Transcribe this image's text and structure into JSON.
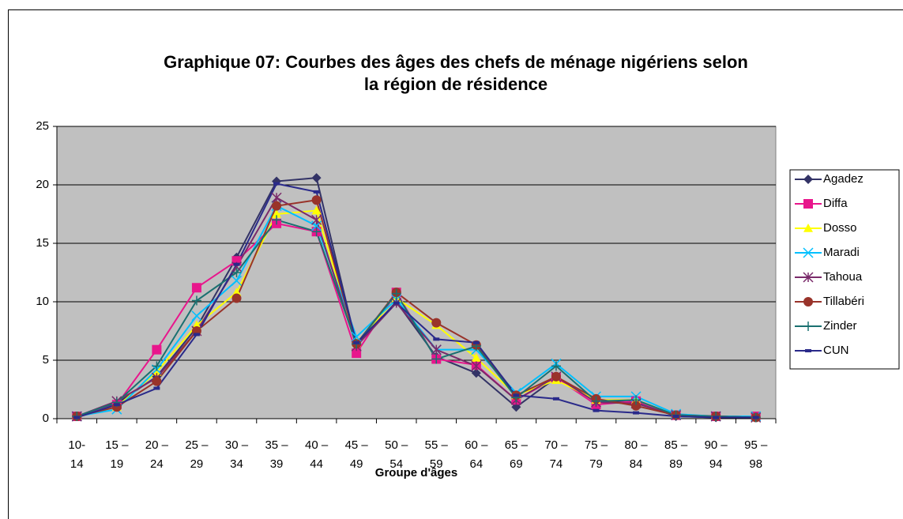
{
  "chart_data": {
    "type": "line",
    "title": "Graphique 07: Courbes des âges des chefs de ménage nigériens selon\nla région de résidence",
    "x_label": "Groupe d'âges",
    "categories": [
      "10-\n14",
      "15 –\n19",
      "20 –\n24",
      "25 –\n29",
      "30 –\n34",
      "35 –\n39",
      "40 –\n44",
      "45 –\n49",
      "50 –\n54",
      "55 –\n59",
      "60 –\n64",
      "65 –\n69",
      "70 –\n74",
      "75 –\n79",
      "80 –\n84",
      "85 –\n89",
      "90 –\n94",
      "95 –\n98"
    ],
    "ylim": [
      0,
      25
    ],
    "yticks": [
      0,
      5,
      10,
      15,
      20,
      25
    ],
    "grid": true,
    "legend": "right",
    "series": [
      {
        "name": "Agadez",
        "color": "#333366",
        "marker": "diamond",
        "values": [
          0.2,
          1.3,
          3.6,
          7.8,
          13.8,
          20.3,
          20.6,
          6.3,
          10.0,
          5.3,
          3.9,
          1.0,
          3.5,
          1.5,
          1.4,
          0.2,
          0.1,
          0.1
        ]
      },
      {
        "name": "Diffa",
        "color": "#e8168c",
        "marker": "square",
        "values": [
          0.2,
          1.2,
          5.9,
          11.2,
          13.5,
          16.7,
          16.0,
          5.6,
          10.8,
          5.1,
          4.6,
          1.6,
          3.5,
          1.2,
          1.5,
          0.3,
          0.2,
          0.2
        ]
      },
      {
        "name": "Dosso",
        "color": "#ffff00",
        "marker": "triangle",
        "values": [
          0.2,
          1.0,
          4.0,
          8.0,
          10.8,
          17.5,
          17.8,
          6.5,
          10.3,
          8.0,
          5.2,
          2.0,
          3.3,
          1.6,
          1.6,
          0.3,
          0.2,
          0.1
        ]
      },
      {
        "name": "Maradi",
        "color": "#00c0ff",
        "marker": "x",
        "values": [
          0.2,
          0.8,
          4.2,
          8.8,
          11.8,
          18.2,
          16.5,
          7.0,
          10.2,
          5.9,
          5.9,
          2.2,
          4.7,
          1.9,
          1.9,
          0.4,
          0.2,
          0.2
        ]
      },
      {
        "name": "Tahoua",
        "color": "#7a2a6a",
        "marker": "star",
        "values": [
          0.2,
          1.5,
          3.5,
          7.5,
          13.0,
          18.9,
          17.0,
          6.2,
          9.9,
          5.9,
          4.5,
          1.6,
          3.6,
          1.4,
          1.3,
          0.3,
          0.2,
          0.1
        ]
      },
      {
        "name": "Tillabéri",
        "color": "#99332a",
        "marker": "circle",
        "values": [
          0.2,
          1.0,
          3.2,
          7.5,
          10.3,
          18.2,
          18.7,
          6.4,
          10.8,
          8.2,
          6.3,
          2.0,
          3.6,
          1.7,
          1.1,
          0.3,
          0.2,
          0.1
        ]
      },
      {
        "name": "Zinder",
        "color": "#1a7070",
        "marker": "plus",
        "values": [
          0.2,
          1.4,
          4.5,
          10.1,
          12.5,
          17.0,
          16.0,
          6.4,
          10.7,
          5.1,
          6.2,
          1.8,
          4.5,
          1.5,
          1.6,
          0.3,
          0.2,
          0.1
        ]
      },
      {
        "name": "CUN",
        "color": "#2a2a8a",
        "marker": "dash",
        "values": [
          0.1,
          1.2,
          2.6,
          7.2,
          13.2,
          20.1,
          19.4,
          6.5,
          9.9,
          6.8,
          6.5,
          2.0,
          1.7,
          0.7,
          0.5,
          0.2,
          0.1,
          0.1
        ]
      }
    ]
  }
}
